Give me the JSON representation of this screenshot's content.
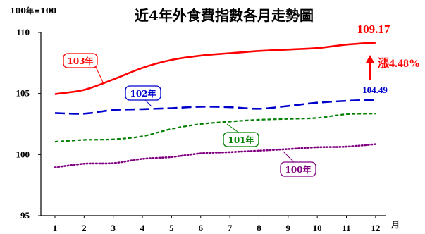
{
  "chart_data": {
    "type": "line",
    "title": "近4年外食費指數各月走勢圖",
    "ylabel": "100年=100",
    "xlabel": "月",
    "categories": [
      "1",
      "2",
      "3",
      "4",
      "5",
      "6",
      "7",
      "8",
      "9",
      "10",
      "11",
      "12"
    ],
    "ylim": [
      95,
      110
    ],
    "yticks": [
      95,
      100,
      105,
      110
    ],
    "grid": false,
    "series": [
      {
        "name": "103年",
        "color": "#ff0000",
        "dash": "solid",
        "values": [
          104.95,
          105.3,
          106.15,
          107.1,
          107.75,
          108.1,
          108.3,
          108.48,
          108.6,
          108.72,
          109.0,
          109.17
        ]
      },
      {
        "name": "102年",
        "color": "#0000cc",
        "dash": "dash",
        "values": [
          103.4,
          103.35,
          103.65,
          103.72,
          103.8,
          103.92,
          103.88,
          103.75,
          103.98,
          104.25,
          104.4,
          104.49
        ]
      },
      {
        "name": "101年",
        "color": "#008000",
        "dash": "dashsmall",
        "values": [
          101.05,
          101.2,
          101.25,
          101.5,
          102.1,
          102.5,
          102.7,
          102.85,
          102.92,
          103.0,
          103.3,
          103.35
        ]
      },
      {
        "name": "100年",
        "color": "#800080",
        "dash": "dot",
        "values": [
          98.95,
          99.25,
          99.3,
          99.65,
          99.8,
          100.1,
          100.2,
          100.32,
          100.45,
          100.6,
          100.65,
          100.85
        ]
      }
    ],
    "annotations": {
      "end_103": "109.17",
      "end_102": "104.49",
      "rise": "漲4.48%"
    }
  }
}
